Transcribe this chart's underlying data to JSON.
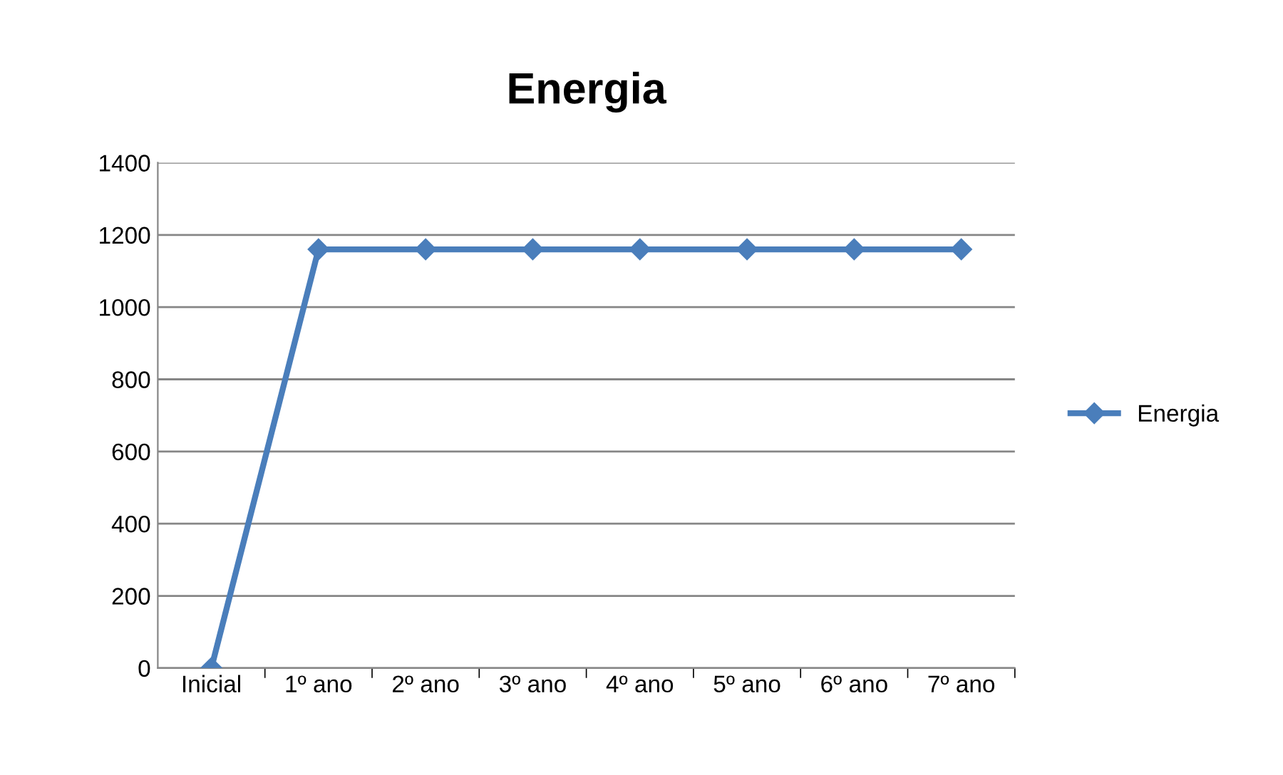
{
  "chart_data": {
    "type": "line",
    "title": "Energia",
    "categories": [
      "Inicial",
      "1º ano",
      "2º ano",
      "3º ano",
      "4º ano",
      "5º ano",
      "6º ano",
      "7º ano"
    ],
    "series": [
      {
        "name": "Energia",
        "color": "#4a7ebb",
        "values": [
          0,
          1160,
          1160,
          1160,
          1160,
          1160,
          1160,
          1160
        ]
      }
    ],
    "ylim": [
      0,
      1400
    ],
    "yticks": [
      0,
      200,
      400,
      600,
      800,
      1000,
      1200,
      1400
    ],
    "grid": "y",
    "legend": "right",
    "marker": "diamond",
    "line_style": "solid"
  }
}
